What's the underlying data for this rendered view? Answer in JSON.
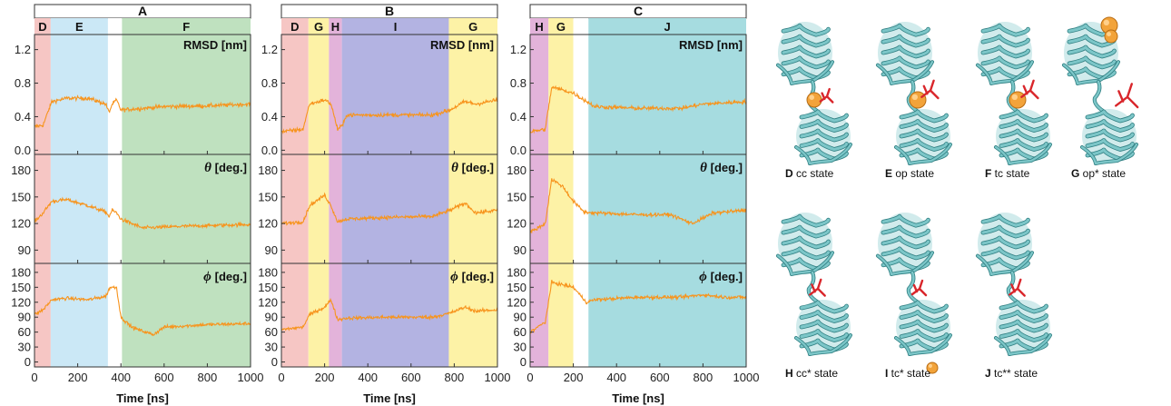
{
  "chart_data": {
    "type": "line",
    "x_axis": {
      "label": "Time [ns]",
      "range": [
        0,
        1000
      ],
      "ticks": [
        0,
        200,
        400,
        600,
        800,
        1000
      ]
    },
    "subplots": [
      {
        "key": "rmsd",
        "label": "RMSD [nm]",
        "symbol": "",
        "range": [
          -0.05,
          1.38
        ],
        "ticks": [
          "0.0",
          "0.4",
          "0.8",
          "1.2"
        ],
        "tick_values": [
          0,
          0.4,
          0.8,
          1.2
        ]
      },
      {
        "key": "theta",
        "label": "[deg.]",
        "symbol": "θ",
        "range": [
          75,
          198
        ],
        "ticks": [
          "90",
          "120",
          "150",
          "180"
        ],
        "tick_values": [
          90,
          120,
          150,
          180
        ]
      },
      {
        "key": "phi",
        "label": "[deg.]",
        "symbol": "ϕ",
        "range": [
          -10,
          198
        ],
        "ticks": [
          "0",
          "30",
          "60",
          "90",
          "120",
          "150",
          "180"
        ],
        "tick_values": [
          0,
          30,
          60,
          90,
          120,
          150,
          180
        ]
      }
    ],
    "line_color": "#f7941d",
    "panels": [
      {
        "title": "A",
        "regions": [
          {
            "label": "D",
            "start": 0,
            "end": 75,
            "color": "#f6c6c4"
          },
          {
            "label": "E",
            "start": 75,
            "end": 340,
            "color": "#cbe8f6"
          },
          {
            "label": "",
            "start": 340,
            "end": 405,
            "color": "#ffffff"
          },
          {
            "label": "F",
            "start": 405,
            "end": 1000,
            "color": "#bfe1bf"
          }
        ],
        "series": {
          "rmsd": [
            [
              0,
              0.28
            ],
            [
              40,
              0.3
            ],
            [
              80,
              0.58
            ],
            [
              150,
              0.62
            ],
            [
              250,
              0.62
            ],
            [
              330,
              0.55
            ],
            [
              345,
              0.45
            ],
            [
              360,
              0.55
            ],
            [
              380,
              0.6
            ],
            [
              400,
              0.48
            ],
            [
              500,
              0.5
            ],
            [
              600,
              0.52
            ],
            [
              800,
              0.53
            ],
            [
              1000,
              0.55
            ]
          ],
          "theta": [
            [
              0,
              122
            ],
            [
              40,
              132
            ],
            [
              80,
              145
            ],
            [
              150,
              147
            ],
            [
              250,
              140
            ],
            [
              330,
              133
            ],
            [
              345,
              128
            ],
            [
              360,
              135
            ],
            [
              380,
              132
            ],
            [
              400,
              125
            ],
            [
              500,
              115
            ],
            [
              700,
              117
            ],
            [
              1000,
              119
            ]
          ],
          "phi": [
            [
              0,
              95
            ],
            [
              40,
              105
            ],
            [
              80,
              125
            ],
            [
              150,
              128
            ],
            [
              250,
              125
            ],
            [
              330,
              132
            ],
            [
              350,
              150
            ],
            [
              380,
              150
            ],
            [
              400,
              90
            ],
            [
              450,
              70
            ],
            [
              500,
              62
            ],
            [
              550,
              55
            ],
            [
              600,
              70
            ],
            [
              800,
              75
            ],
            [
              1000,
              77
            ]
          ]
        }
      },
      {
        "title": "B",
        "regions": [
          {
            "label": "D",
            "start": 0,
            "end": 125,
            "color": "#f6c6c4"
          },
          {
            "label": "G",
            "start": 125,
            "end": 220,
            "color": "#fdf2a6"
          },
          {
            "label": "H",
            "start": 220,
            "end": 280,
            "color": "#e3b3da"
          },
          {
            "label": "I",
            "start": 280,
            "end": 775,
            "color": "#b3b3e2"
          },
          {
            "label": "G",
            "start": 775,
            "end": 1000,
            "color": "#fdf2a6"
          }
        ],
        "series": {
          "rmsd": [
            [
              0,
              0.22
            ],
            [
              100,
              0.25
            ],
            [
              130,
              0.55
            ],
            [
              200,
              0.6
            ],
            [
              230,
              0.55
            ],
            [
              260,
              0.25
            ],
            [
              285,
              0.3
            ],
            [
              300,
              0.42
            ],
            [
              500,
              0.42
            ],
            [
              700,
              0.42
            ],
            [
              780,
              0.48
            ],
            [
              850,
              0.58
            ],
            [
              900,
              0.55
            ],
            [
              1000,
              0.6
            ]
          ],
          "theta": [
            [
              0,
              120
            ],
            [
              100,
              122
            ],
            [
              130,
              140
            ],
            [
              200,
              152
            ],
            [
              230,
              140
            ],
            [
              260,
              122
            ],
            [
              300,
              125
            ],
            [
              500,
              127
            ],
            [
              700,
              128
            ],
            [
              780,
              135
            ],
            [
              850,
              143
            ],
            [
              900,
              132
            ],
            [
              1000,
              135
            ]
          ],
          "phi": [
            [
              0,
              65
            ],
            [
              100,
              70
            ],
            [
              130,
              95
            ],
            [
              200,
              110
            ],
            [
              230,
              125
            ],
            [
              260,
              85
            ],
            [
              300,
              88
            ],
            [
              500,
              90
            ],
            [
              700,
              90
            ],
            [
              780,
              98
            ],
            [
              850,
              110
            ],
            [
              900,
              102
            ],
            [
              1000,
              105
            ]
          ]
        }
      },
      {
        "title": "C",
        "regions": [
          {
            "label": "H",
            "start": 0,
            "end": 85,
            "color": "#e3b3da"
          },
          {
            "label": "G",
            "start": 85,
            "end": 200,
            "color": "#fdf2a6"
          },
          {
            "label": "",
            "start": 200,
            "end": 270,
            "color": "#ffffff"
          },
          {
            "label": "J",
            "start": 270,
            "end": 1000,
            "color": "#a6dce0"
          }
        ],
        "series": {
          "rmsd": [
            [
              0,
              0.22
            ],
            [
              70,
              0.25
            ],
            [
              100,
              0.75
            ],
            [
              150,
              0.72
            ],
            [
              200,
              0.68
            ],
            [
              250,
              0.6
            ],
            [
              300,
              0.52
            ],
            [
              500,
              0.5
            ],
            [
              700,
              0.5
            ],
            [
              800,
              0.55
            ],
            [
              1000,
              0.58
            ]
          ],
          "theta": [
            [
              0,
              110
            ],
            [
              70,
              120
            ],
            [
              100,
              170
            ],
            [
              150,
              162
            ],
            [
              200,
              145
            ],
            [
              250,
              133
            ],
            [
              300,
              132
            ],
            [
              500,
              130
            ],
            [
              650,
              130
            ],
            [
              750,
              120
            ],
            [
              850,
              132
            ],
            [
              1000,
              135
            ]
          ],
          "phi": [
            [
              0,
              60
            ],
            [
              70,
              80
            ],
            [
              100,
              160
            ],
            [
              150,
              155
            ],
            [
              200,
              150
            ],
            [
              260,
              120
            ],
            [
              300,
              125
            ],
            [
              500,
              130
            ],
            [
              700,
              130
            ],
            [
              800,
              135
            ],
            [
              900,
              130
            ],
            [
              1000,
              130
            ]
          ]
        }
      }
    ]
  },
  "states": [
    {
      "letter": "D",
      "name": "cc state",
      "ligand_mode": "center-sphere"
    },
    {
      "letter": "E",
      "name": "op state",
      "ligand_mode": "center-sphere-stick"
    },
    {
      "letter": "F",
      "name": "tc state",
      "ligand_mode": "center-sphere-stick"
    },
    {
      "letter": "G",
      "name": "op* state",
      "ligand_mode": "top-sphere-far-stick"
    },
    {
      "letter": "H",
      "name": "cc* state",
      "ligand_mode": "stick-only"
    },
    {
      "letter": "I",
      "name": "tc* state",
      "ligand_mode": "stick-bottom-sphere"
    },
    {
      "letter": "J",
      "name": "tc** state",
      "ligand_mode": "stick-only"
    }
  ],
  "colors": {
    "protein": "#7cc6c8",
    "protein_dark": "#2f7f82",
    "ligand_sphere": "#f2a33a",
    "ligand_stick": "#d9262b"
  }
}
